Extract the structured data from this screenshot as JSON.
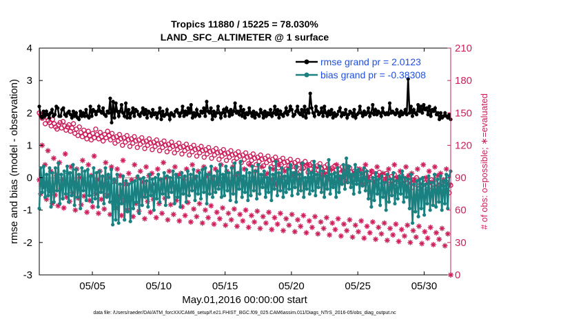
{
  "chart_data": {
    "type": "line",
    "title": "Tropics 11880 / 15225 = 78.030%",
    "subtitle": "LAND_SFC_ALTIMETER @ 1 surface",
    "xlabel": "May.01,2016 00:00:00 start",
    "ylabel": "rmse and bias (model - observation)",
    "y2label": "# of obs: o=possible; ∗=evaluated",
    "xlim": [
      1,
      32
    ],
    "ylim": [
      -3,
      4
    ],
    "y2lim": [
      0,
      210
    ],
    "xticks": [
      5,
      10,
      15,
      20,
      25,
      30
    ],
    "xticklabels": [
      "05/05",
      "05/10",
      "05/15",
      "05/20",
      "05/25",
      "05/30"
    ],
    "yticklabels": [
      "4",
      "3",
      "2",
      "1",
      "0",
      "-1",
      "-2",
      "-3"
    ],
    "y2ticklabels": [
      "210",
      "180",
      "150",
      "120",
      "90",
      "60",
      "30",
      "0"
    ],
    "legend": [
      {
        "name": "rmse grand pr = 2.0123",
        "color": "#000000"
      },
      {
        "name": "bias grand pr = -0.38308",
        "color": "#1a8080"
      }
    ],
    "colors": {
      "rmse": "#000000",
      "bias": "#1a8080",
      "obs": "#cc1f5b",
      "zero": "#bbbbbb"
    },
    "footnote": "data file: /Users/raeder/DAI/ATM_forcXX/CAM6_setup/f.e21.FHIST_BGC.f09_025.CAM6assim.011/Diags_NTrS_2016-05/obs_diag_output.nc",
    "series": [
      {
        "name": "rmse",
        "values": [
          2.2,
          1.9,
          1.85,
          2.05,
          1.9,
          2.05,
          1.95,
          1.85,
          2.0,
          2.1,
          1.9,
          1.95,
          2.2,
          2.15,
          1.9,
          1.9,
          2.1,
          2.15,
          1.95,
          1.9,
          2.0,
          2.05,
          1.95,
          1.85,
          2.05,
          1.9,
          2.0,
          1.85,
          1.8,
          2.05,
          1.9,
          2.0,
          1.9,
          2.1,
          1.9,
          1.85,
          2.2,
          1.9,
          2.1,
          2.05,
          1.95,
          2.05,
          2.2,
          2.05,
          2.0,
          2.15,
          1.95,
          1.9,
          2.05,
          2.0,
          2.45,
          1.7,
          2.35,
          1.85,
          2.3,
          2.05,
          1.9,
          2.05,
          2.25,
          2.0,
          1.9,
          2.3,
          1.85,
          2.1,
          1.85,
          2.0,
          2.15,
          1.9,
          2.1,
          2.05,
          1.95,
          1.9,
          2.0,
          2.15,
          1.95,
          2.1,
          1.85,
          2.05,
          2.0,
          1.9,
          2.1,
          1.95,
          2.0,
          1.85,
          2.0,
          2.15,
          1.8,
          2.05,
          1.9,
          1.95,
          2.1,
          1.95,
          1.8,
          2.0,
          1.95,
          1.9,
          2.05,
          2.1,
          2.0,
          1.9,
          2.0,
          2.2,
          1.9,
          2.05,
          1.95,
          2.15,
          2.0,
          2.25,
          1.85,
          2.0,
          1.9,
          2.1,
          1.95,
          1.9,
          2.05,
          2.0,
          2.15,
          1.9,
          2.35,
          2.05,
          2.0,
          2.15,
          1.8,
          2.05,
          1.9,
          2.0,
          2.2,
          2.0,
          1.85,
          2.0,
          2.1,
          1.9,
          2.15,
          2.05,
          1.9,
          2.1,
          1.95,
          2.05,
          2.3,
          2.0,
          2.05,
          1.95,
          2.2,
          1.9,
          2.1,
          1.85,
          2.0,
          1.95,
          2.15,
          2.0,
          1.9,
          2.05,
          1.85,
          2.0,
          1.95,
          1.9,
          2.1,
          2.0,
          1.85,
          2.05,
          1.9,
          2.0,
          1.95,
          2.1,
          1.9,
          2.0,
          2.2,
          1.95,
          2.1,
          1.85,
          2.05,
          1.95,
          1.9,
          2.0,
          2.15,
          1.95,
          2.05,
          2.2,
          2.1,
          1.9,
          1.95,
          2.05,
          2.2,
          2.0,
          1.95,
          2.1,
          1.9,
          2.2,
          1.85,
          2.1,
          2.0,
          2.6,
          2.15,
          2.0,
          1.9,
          2.2,
          2.05,
          1.95,
          2.0,
          2.15,
          1.9,
          2.2,
          2.0,
          1.9,
          2.05,
          1.95,
          2.1,
          1.85,
          2.0,
          1.9,
          1.95,
          2.05,
          2.15,
          1.9,
          2.0,
          1.95,
          2.1,
          1.85,
          1.95,
          2.05,
          2.0,
          1.9,
          2.1,
          1.85,
          1.95,
          2.0,
          2.2,
          2.0,
          1.9,
          2.05,
          1.95,
          2.0,
          2.15,
          1.9,
          2.0,
          2.25,
          1.95,
          2.1,
          1.95,
          2.05,
          2.0,
          1.9,
          2.15,
          2.0,
          1.95,
          2.0,
          1.95,
          2.3,
          2.0,
          2.05,
          2.0,
          1.95,
          2.1,
          2.0,
          1.9,
          2.05,
          1.95,
          2.0,
          2.1,
          1.95,
          3.05,
          2.0,
          2.2,
          1.9,
          2.1,
          2.0,
          1.95,
          2.25,
          2.05,
          2.2,
          2.0,
          2.25,
          2.1,
          2.15,
          1.95,
          2.2,
          1.9,
          2.1,
          2.05,
          2.15,
          1.95,
          2.0,
          1.8,
          2.0,
          1.85,
          1.9,
          2.0,
          1.9,
          1.85,
          1.95,
          1.8
        ]
      },
      {
        "name": "bias",
        "values": [
          -0.95,
          0.3,
          -0.45,
          0.35,
          -0.6,
          0.1,
          -0.55,
          0.3,
          -0.9,
          0.15,
          -0.75,
          0.3,
          -0.4,
          0.45,
          -0.8,
          0.1,
          -0.65,
          0.2,
          -0.5,
          0.35,
          -0.75,
          0.15,
          -0.55,
          0.4,
          -0.85,
          0.25,
          -0.6,
          0.1,
          -0.95,
          0.3,
          -0.4,
          0.2,
          -0.7,
          0.25,
          -0.55,
          0.05,
          -0.75,
          0.3,
          -0.65,
          0.15,
          -0.9,
          0.2,
          -0.45,
          0.05,
          -0.8,
          0.3,
          -0.6,
          0.1,
          -0.75,
          0.25,
          -1.45,
          -0.05,
          -1.3,
          0.1,
          -1.4,
          -0.2,
          -0.8,
          0.05,
          -1.3,
          -0.1,
          -1.05,
          -0.2,
          -1.35,
          -0.15,
          -0.95,
          -0.1,
          -0.75,
          0.05,
          -1.1,
          -0.05,
          -0.85,
          0.0,
          -0.6,
          -0.1,
          -0.9,
          0.1,
          -0.55,
          -0.05,
          -1.0,
          0.0,
          -0.65,
          0.1,
          -0.75,
          -0.05,
          -0.5,
          0.15,
          -0.85,
          0.05,
          -0.6,
          0.0,
          -0.45,
          0.2,
          -0.8,
          0.1,
          -0.6,
          0.0,
          -0.9,
          0.15,
          -0.5,
          0.05,
          -0.75,
          0.2,
          -0.55,
          0.1,
          -0.4,
          0.25,
          -0.7,
          0.05,
          -0.5,
          0.15,
          -0.65,
          0.25,
          -0.45,
          0.3,
          -0.8,
          0.1,
          -0.5,
          0.35,
          -0.6,
          0.05,
          -0.45,
          0.2,
          -0.35,
          0.4,
          -0.6,
          0.1,
          -0.55,
          0.35,
          -0.4,
          0.15,
          -0.7,
          0.3,
          -0.5,
          0.45,
          -0.75,
          0.15,
          -0.35,
          0.5,
          -0.6,
          0.05,
          -0.45,
          0.25,
          -0.7,
          0.15,
          -0.55,
          0.35,
          -0.4,
          0.2,
          -0.65,
          0.4,
          -0.5,
          0.1,
          -0.3,
          0.2,
          -0.6,
          0.0,
          -0.45,
          0.3,
          -0.7,
          0.1,
          -0.35,
          0.5,
          -0.55,
          0.15,
          -0.4,
          0.3,
          -0.6,
          0.05,
          -0.45,
          0.25,
          -0.35,
          0.4,
          -0.55,
          0.15,
          -0.3,
          0.35,
          -0.5,
          0.1,
          -0.4,
          0.45,
          -0.6,
          0.0,
          -0.35,
          0.25,
          -0.5,
          0.15,
          -0.4,
          0.5,
          -0.55,
          0.1,
          -0.3,
          0.35,
          -0.45,
          0.2,
          -0.6,
          0.05,
          -0.35,
          0.55,
          -0.5,
          0.1,
          -0.3,
          0.15,
          -0.6,
          0.3,
          -0.45,
          0.05,
          -0.2,
          0.4,
          -0.35,
          0.6,
          -0.15,
          0.35,
          -0.3,
          0.1,
          -0.5,
          0.4,
          -0.2,
          0.25,
          -0.45,
          0.15,
          -0.25,
          0.3,
          -0.4,
          0.2,
          -0.65,
          -0.1,
          -0.9,
          0.0,
          -0.7,
          0.15,
          -0.5,
          -0.05,
          -0.85,
          0.05,
          -0.6,
          -0.15,
          -1.0,
          0.1,
          -0.75,
          -0.05,
          -0.55,
          0.15,
          -0.8,
          -0.1,
          -0.65,
          0.05,
          -0.5,
          0.2,
          -0.75,
          0.0,
          -0.6,
          -0.05,
          -0.95,
          0.1,
          -1.4,
          -0.2,
          -1.05,
          -0.1,
          -1.2,
          -0.05,
          -0.95,
          0.0,
          -1.15,
          -0.2,
          -0.8,
          0.05,
          -1.0,
          -0.15,
          -0.85,
          0.1,
          -0.9,
          -0.05,
          -0.75,
          0.05,
          -1.0,
          -0.1,
          -0.8,
          0.1,
          -0.95,
          0.05,
          0.2
        ]
      },
      {
        "name": "possible",
        "values": [
          150,
          148,
          145,
          147,
          140,
          146,
          143,
          141,
          138,
          144,
          140,
          137,
          135,
          139,
          141,
          136,
          142,
          138,
          134,
          137,
          139,
          133,
          136,
          140,
          131,
          135,
          129,
          137,
          132,
          128,
          134,
          130,
          126,
          133,
          129,
          125,
          131,
          127,
          135,
          130,
          126,
          132,
          128,
          124,
          130,
          127,
          133,
          129,
          125,
          131,
          127,
          122,
          128,
          124,
          130,
          126,
          120,
          127,
          123,
          129,
          125,
          119,
          126,
          122,
          128,
          124,
          118,
          125,
          121,
          127,
          123,
          117,
          124,
          120,
          126,
          122,
          116,
          123,
          119,
          125,
          121,
          115,
          122,
          118,
          124,
          120,
          114,
          121,
          117,
          123,
          119,
          113,
          120,
          116,
          122,
          118,
          112,
          119,
          115,
          121,
          117,
          111,
          118,
          114,
          120,
          116,
          110,
          117,
          113,
          119,
          115,
          109,
          116,
          112,
          118,
          114,
          108,
          115,
          111,
          117,
          113,
          107,
          114,
          110,
          116,
          112,
          106,
          113,
          109,
          115,
          111,
          105,
          112,
          108,
          114,
          110,
          104,
          111,
          107,
          113,
          109,
          103,
          110,
          106,
          112,
          108,
          102,
          109,
          105,
          111,
          107,
          101,
          108,
          104,
          110,
          106,
          100,
          107,
          103,
          109,
          105,
          99,
          106,
          102,
          108,
          104,
          98,
          105,
          101,
          107,
          103,
          97,
          104,
          100,
          106,
          102,
          96,
          103,
          99,
          105,
          101,
          95,
          102,
          98,
          104,
          100,
          94,
          101,
          97,
          103,
          99,
          93,
          100,
          96,
          102,
          98,
          92,
          99,
          95,
          101,
          97,
          91,
          98,
          94,
          100,
          96,
          90,
          97,
          93,
          99,
          95,
          89,
          96,
          92,
          98,
          94,
          88,
          95,
          91,
          97,
          93,
          87,
          94,
          90,
          96,
          92,
          86,
          93,
          89,
          95,
          91,
          85,
          92,
          88,
          94,
          90,
          84,
          91,
          87,
          93,
          89,
          83,
          90,
          86,
          92,
          88,
          82,
          89,
          85,
          91,
          87,
          81,
          88,
          84,
          90,
          86,
          80,
          87,
          83,
          89,
          85,
          79,
          86,
          82,
          88,
          84,
          78,
          85,
          81,
          87,
          83,
          77,
          84,
          80,
          86,
          82,
          76,
          83
        ]
      },
      {
        "name": "evaluated",
        "values": [
          88,
          75,
          120,
          82,
          102,
          70,
          115,
          78,
          96,
          66,
          108,
          74,
          92,
          64,
          104,
          80,
          88,
          62,
          112,
          72,
          94,
          68,
          100,
          76,
          86,
          60,
          98,
          71,
          90,
          65,
          106,
          73,
          84,
          58,
          102,
          69,
          92,
          63,
          110,
          75,
          88,
          57,
          96,
          70,
          84,
          61,
          104,
          74,
          90,
          56,
          100,
          67,
          86,
          62,
          98,
          72,
          92,
          55,
          106,
          69,
          84,
          60,
          94,
          71,
          88,
          54,
          102,
          66,
          90,
          59,
          96,
          73,
          86,
          52,
          100,
          68,
          92,
          58,
          94,
          70,
          84,
          53,
          98,
          66,
          88,
          57,
          104,
          71,
          90,
          51,
          96,
          65,
          86,
          56,
          100,
          69,
          92,
          50,
          94,
          63,
          88,
          55,
          98,
          67,
          84,
          49,
          102,
          61,
          90,
          54,
          96,
          66,
          86,
          48,
          100,
          60,
          92,
          53,
          94,
          64,
          88,
          47,
          98,
          58,
          84,
          52,
          102,
          62,
          90,
          46,
          96,
          57,
          86,
          51,
          100,
          61,
          92,
          45,
          94,
          56,
          88,
          50,
          98,
          60,
          84,
          44,
          102,
          55,
          90,
          49,
          96,
          59,
          86,
          43,
          100,
          54,
          92,
          48,
          94,
          58,
          88,
          42,
          98,
          53,
          84,
          47,
          102,
          57,
          90,
          41,
          96,
          52,
          86,
          46,
          100,
          56,
          92,
          40,
          94,
          51,
          88,
          45,
          98,
          55,
          84,
          39,
          102,
          50,
          90,
          44,
          96,
          54,
          86,
          38,
          100,
          49,
          92,
          43,
          94,
          53,
          88,
          37,
          98,
          48,
          84,
          42,
          102,
          52,
          90,
          36,
          96,
          47,
          86,
          41,
          100,
          51,
          92,
          35,
          94,
          46,
          88,
          40,
          98,
          50,
          84,
          34,
          102,
          45,
          90,
          39,
          96,
          49,
          86,
          33,
          100,
          44,
          92,
          38,
          94,
          48,
          88,
          32,
          98,
          43,
          84,
          37,
          102,
          47,
          90,
          31,
          96,
          42,
          86,
          36,
          100,
          46,
          92,
          30,
          94,
          41,
          88,
          35,
          98,
          45,
          84,
          29,
          102,
          40,
          90,
          34,
          96,
          44,
          86,
          28,
          100,
          39,
          92,
          33,
          94,
          43,
          88,
          27,
          98,
          38,
          84,
          0
        ]
      }
    ]
  }
}
